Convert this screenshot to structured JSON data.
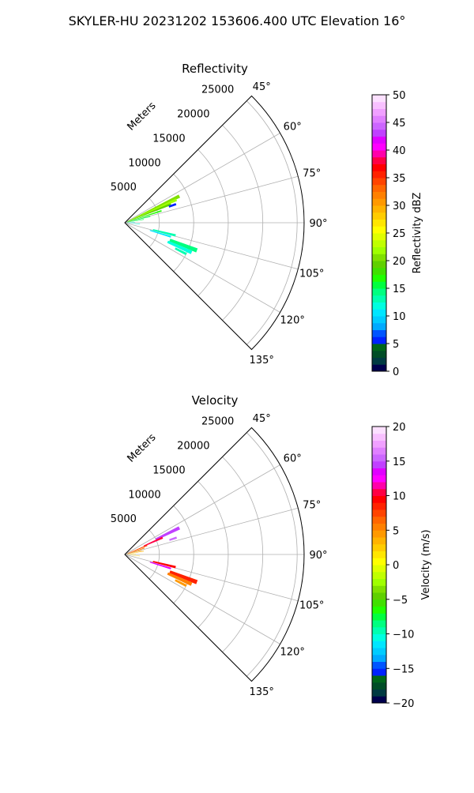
{
  "suptitle": "SKYLER-HU  20231202  153606.400 UTC Elevation 16°",
  "chart_data": [
    {
      "type": "ppi-sector",
      "title": "Reflectivity",
      "range_label": "Meters",
      "range_ticks": [
        "5000",
        "10000",
        "15000",
        "20000",
        "25000"
      ],
      "range_values": [
        5000,
        10000,
        15000,
        20000,
        25000
      ],
      "range_max": 26000,
      "azimuth_ticks": [
        "45°",
        "60°",
        "75°",
        "90°",
        "105°",
        "120°",
        "135°"
      ],
      "azimuth_values": [
        45,
        60,
        75,
        90,
        105,
        120,
        135
      ],
      "colorbar": {
        "label": "Reflectivity dBZ",
        "min": 0,
        "max": 50,
        "ticks": [
          "0",
          "5",
          "10",
          "15",
          "20",
          "25",
          "30",
          "35",
          "40",
          "45",
          "50"
        ],
        "tick_values": [
          0,
          5,
          10,
          15,
          20,
          25,
          30,
          35,
          40,
          45,
          50
        ],
        "colors": [
          "#00004d",
          "#003a42",
          "#004d26",
          "#00661a",
          "#0022ff",
          "#0055ff",
          "#00aaff",
          "#00ccff",
          "#00e6ff",
          "#00ffe0",
          "#00ffb0",
          "#00ff80",
          "#00ff40",
          "#20ff00",
          "#40e000",
          "#60d000",
          "#80e000",
          "#a0ff00",
          "#c0ff00",
          "#e0ff00",
          "#ffff00",
          "#ffe600",
          "#ffcc00",
          "#ffb300",
          "#ff9900",
          "#ff8000",
          "#ff6600",
          "#ff4400",
          "#ff2200",
          "#ff0000",
          "#ff0044",
          "#ff00aa",
          "#ff00ff",
          "#e000ff",
          "#c040ff",
          "#cc66ff",
          "#e080ff",
          "#f0a0ff",
          "#f8c0ff",
          "#fce0ff"
        ]
      },
      "echoes": [
        {
          "az": 64,
          "r0": 500,
          "r1": 8800,
          "w": 1.6,
          "value": 20
        },
        {
          "az": 66,
          "r0": 400,
          "r1": 8200,
          "w": 1.4,
          "value": 22
        },
        {
          "az": 68,
          "r0": 300,
          "r1": 7200,
          "w": 1.2,
          "value": 19
        },
        {
          "az": 72,
          "r0": 300,
          "r1": 5600,
          "w": 1.1,
          "value": 17
        },
        {
          "az": 76,
          "r0": 300,
          "r1": 3800,
          "w": 1.0,
          "value": 16
        },
        {
          "az": 80,
          "r0": 300,
          "r1": 2800,
          "w": 0.9,
          "value": 15
        },
        {
          "az": 70,
          "r0": 6800,
          "r1": 7900,
          "w": 1.2,
          "value": 5
        },
        {
          "az": 87,
          "r0": 300,
          "r1": 1500,
          "w": 0.8,
          "value": 10
        },
        {
          "az": 95,
          "r0": 500,
          "r1": 2200,
          "w": 0.9,
          "value": 12
        },
        {
          "az": 104,
          "r0": 4200,
          "r1": 7600,
          "w": 1.3,
          "value": 13
        },
        {
          "az": 107,
          "r0": 3800,
          "r1": 7000,
          "w": 1.0,
          "value": 11
        },
        {
          "az": 111,
          "r0": 7000,
          "r1": 11200,
          "w": 1.6,
          "value": 14
        },
        {
          "az": 114,
          "r0": 6800,
          "r1": 10600,
          "w": 1.4,
          "value": 12
        },
        {
          "az": 117,
          "r0": 8200,
          "r1": 10000,
          "w": 1.0,
          "value": 13
        }
      ]
    },
    {
      "type": "ppi-sector",
      "title": "Velocity",
      "range_label": "Meters",
      "range_ticks": [
        "5000",
        "10000",
        "15000",
        "20000",
        "25000"
      ],
      "range_values": [
        5000,
        10000,
        15000,
        20000,
        25000
      ],
      "range_max": 26000,
      "azimuth_ticks": [
        "45°",
        "60°",
        "75°",
        "90°",
        "105°",
        "120°",
        "135°"
      ],
      "azimuth_values": [
        45,
        60,
        75,
        90,
        105,
        120,
        135
      ],
      "colorbar": {
        "label": "Velocity (m/s)",
        "min": -20,
        "max": 20,
        "ticks": [
          "−20",
          "−15",
          "−10",
          "−5",
          "0",
          "5",
          "10",
          "15",
          "20"
        ],
        "tick_values": [
          -20,
          -15,
          -10,
          -5,
          0,
          5,
          10,
          15,
          20
        ],
        "colors": [
          "#00004d",
          "#003a42",
          "#004d26",
          "#00661a",
          "#0022ff",
          "#0055ff",
          "#00aaff",
          "#00ccff",
          "#00e6ff",
          "#00ffe0",
          "#00ffb0",
          "#00ff80",
          "#00ff40",
          "#20ff00",
          "#40e000",
          "#60d000",
          "#80e000",
          "#a0ff00",
          "#c0ff00",
          "#e0ff00",
          "#ffff00",
          "#ffe600",
          "#ffcc00",
          "#ffb300",
          "#ff9900",
          "#ff8000",
          "#ff6600",
          "#ff4400",
          "#ff2200",
          "#ff0000",
          "#ff0044",
          "#ff00aa",
          "#ff00ff",
          "#e000ff",
          "#c040ff",
          "#cc66ff",
          "#e080ff",
          "#f0a0ff",
          "#f8c0ff",
          "#fce0ff"
        ]
      },
      "echoes": [
        {
          "az": 64,
          "r0": 5000,
          "r1": 8800,
          "w": 1.6,
          "value": 14
        },
        {
          "az": 66,
          "r0": 3000,
          "r1": 6000,
          "w": 1.4,
          "value": 10
        },
        {
          "az": 68,
          "r0": 500,
          "r1": 3500,
          "w": 1.3,
          "value": 7
        },
        {
          "az": 72,
          "r0": 300,
          "r1": 3000,
          "w": 1.1,
          "value": 5
        },
        {
          "az": 76,
          "r0": 300,
          "r1": 2500,
          "w": 1.0,
          "value": 4
        },
        {
          "az": 80,
          "r0": 300,
          "r1": 2800,
          "w": 0.9,
          "value": 3
        },
        {
          "az": 72,
          "r0": 6800,
          "r1": 7900,
          "w": 1.1,
          "value": 15
        },
        {
          "az": 88,
          "r0": 300,
          "r1": 1600,
          "w": 0.8,
          "value": 1
        },
        {
          "az": 96,
          "r0": 500,
          "r1": 2200,
          "w": 0.9,
          "value": 2
        },
        {
          "az": 104,
          "r0": 4200,
          "r1": 7600,
          "w": 1.3,
          "value": 9
        },
        {
          "az": 107,
          "r0": 3800,
          "r1": 7000,
          "w": 1.0,
          "value": 13
        },
        {
          "az": 111,
          "r0": 7000,
          "r1": 11200,
          "w": 1.6,
          "value": 8
        },
        {
          "az": 114,
          "r0": 6800,
          "r1": 10600,
          "w": 1.4,
          "value": 5
        },
        {
          "az": 117,
          "r0": 8200,
          "r1": 10000,
          "w": 1.0,
          "value": 4
        }
      ]
    }
  ]
}
